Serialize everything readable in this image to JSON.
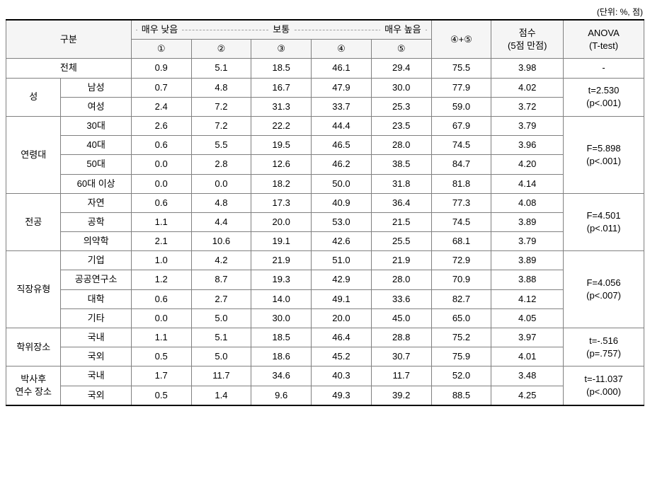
{
  "unit_label": "(단위: %, 점)",
  "header": {
    "category": "구분",
    "scale_low": "매우 낮음",
    "scale_mid": "보통",
    "scale_high": "매우 높음",
    "col1": "①",
    "col2": "②",
    "col3": "③",
    "col4": "④",
    "col5": "⑤",
    "sum45": "④+⑤",
    "score_line1": "점수",
    "score_line2": "(5점 만점)",
    "anova_line1": "ANOVA",
    "anova_line2": "(T-test)"
  },
  "groups": [
    {
      "name": "전체",
      "is_total": true,
      "rows": [
        {
          "label": "전체",
          "v": [
            "0.9",
            "5.1",
            "18.5",
            "46.1",
            "29.4",
            "75.5",
            "3.98"
          ]
        }
      ],
      "anova": [
        "-"
      ]
    },
    {
      "name": "성",
      "rows": [
        {
          "label": "남성",
          "v": [
            "0.7",
            "4.8",
            "16.7",
            "47.9",
            "30.0",
            "77.9",
            "4.02"
          ]
        },
        {
          "label": "여성",
          "v": [
            "2.4",
            "7.2",
            "31.3",
            "33.7",
            "25.3",
            "59.0",
            "3.72"
          ]
        }
      ],
      "anova": [
        "t=2.530",
        "(p<.001)"
      ]
    },
    {
      "name": "연령대",
      "rows": [
        {
          "label": "30대",
          "v": [
            "2.6",
            "7.2",
            "22.2",
            "44.4",
            "23.5",
            "67.9",
            "3.79"
          ]
        },
        {
          "label": "40대",
          "v": [
            "0.6",
            "5.5",
            "19.5",
            "46.5",
            "28.0",
            "74.5",
            "3.96"
          ]
        },
        {
          "label": "50대",
          "v": [
            "0.0",
            "2.8",
            "12.6",
            "46.2",
            "38.5",
            "84.7",
            "4.20"
          ]
        },
        {
          "label": "60대 이상",
          "v": [
            "0.0",
            "0.0",
            "18.2",
            "50.0",
            "31.8",
            "81.8",
            "4.14"
          ]
        }
      ],
      "anova": [
        "F=5.898",
        "(p<.001)"
      ]
    },
    {
      "name": "전공",
      "rows": [
        {
          "label": "자연",
          "v": [
            "0.6",
            "4.8",
            "17.3",
            "40.9",
            "36.4",
            "77.3",
            "4.08"
          ]
        },
        {
          "label": "공학",
          "v": [
            "1.1",
            "4.4",
            "20.0",
            "53.0",
            "21.5",
            "74.5",
            "3.89"
          ]
        },
        {
          "label": "의약학",
          "v": [
            "2.1",
            "10.6",
            "19.1",
            "42.6",
            "25.5",
            "68.1",
            "3.79"
          ]
        }
      ],
      "anova": [
        "F=4.501",
        "(p<.011)"
      ]
    },
    {
      "name": "직장유형",
      "rows": [
        {
          "label": "기업",
          "v": [
            "1.0",
            "4.2",
            "21.9",
            "51.0",
            "21.9",
            "72.9",
            "3.89"
          ]
        },
        {
          "label": "공공연구소",
          "v": [
            "1.2",
            "8.7",
            "19.3",
            "42.9",
            "28.0",
            "70.9",
            "3.88"
          ]
        },
        {
          "label": "대학",
          "v": [
            "0.6",
            "2.7",
            "14.0",
            "49.1",
            "33.6",
            "82.7",
            "4.12"
          ]
        },
        {
          "label": "기타",
          "v": [
            "0.0",
            "5.0",
            "30.0",
            "20.0",
            "45.0",
            "65.0",
            "4.05"
          ]
        }
      ],
      "anova": [
        "F=4.056",
        "(p<.007)"
      ]
    },
    {
      "name": "학위장소",
      "rows": [
        {
          "label": "국내",
          "v": [
            "1.1",
            "5.1",
            "18.5",
            "46.4",
            "28.8",
            "75.2",
            "3.97"
          ]
        },
        {
          "label": "국외",
          "v": [
            "0.5",
            "5.0",
            "18.6",
            "45.2",
            "30.7",
            "75.9",
            "4.01"
          ]
        }
      ],
      "anova": [
        "t=-.516",
        "(p=.757)"
      ]
    },
    {
      "name_lines": [
        "박사후",
        "연수 장소"
      ],
      "rows": [
        {
          "label": "국내",
          "v": [
            "1.7",
            "11.7",
            "34.6",
            "40.3",
            "11.7",
            "52.0",
            "3.48"
          ]
        },
        {
          "label": "국외",
          "v": [
            "0.5",
            "1.4",
            "9.6",
            "49.3",
            "39.2",
            "88.5",
            "4.25"
          ]
        }
      ],
      "anova": [
        "t=-11.037",
        "(p<.000)"
      ]
    }
  ],
  "style": {
    "background_color": "#ffffff",
    "header_bg": "#f5f5f5",
    "border_color": "#808080",
    "strong_border_color": "#000000",
    "text_color": "#000000",
    "font_size_pt": 10,
    "font_family": "Malgun Gothic"
  }
}
